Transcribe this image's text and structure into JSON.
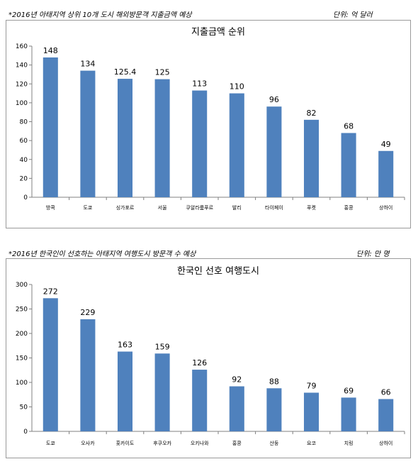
{
  "notes": [
    {
      "left": "*2016년 아태지역 상위 10개 도시 해외방문객 지출금액 예상",
      "right": "단위: 억 달러"
    },
    {
      "left": "*2016년 한국인이 선호하는 아태지역 여행도시 방문객 수 예상",
      "right": "단위: 만 명"
    }
  ],
  "chart_data": [
    {
      "type": "bar",
      "title": "지출금액 순위",
      "categories": [
        "방콕",
        "도쿄",
        "싱가포르",
        "서울",
        "쿠알라룸푸르",
        "발리",
        "타이페이",
        "푸켓",
        "홍콩",
        "상하이"
      ],
      "values": [
        148,
        134,
        125.4,
        125,
        113,
        110,
        96,
        82,
        68,
        49
      ],
      "value_labels": [
        "148",
        "134",
        "125.4",
        "125",
        "113",
        "110",
        "96",
        "82",
        "68",
        "49"
      ],
      "yticks": [
        "0",
        "20",
        "40",
        "60",
        "80",
        "100",
        "120",
        "140",
        "160"
      ],
      "ylim": [
        0,
        160
      ],
      "grid": false,
      "bar_color": "#4f81bd"
    },
    {
      "type": "bar",
      "title": "한국인 선호 여행도시",
      "categories": [
        "도쿄",
        "오사카",
        "홋카이도",
        "후쿠오카",
        "오키나와",
        "홍콩",
        "산둥",
        "요코",
        "치링",
        "상하이"
      ],
      "values": [
        272,
        229,
        163,
        159,
        126,
        92,
        88,
        79,
        69,
        66
      ],
      "value_labels": [
        "272",
        "229",
        "163",
        "159",
        "126",
        "92",
        "88",
        "79",
        "69",
        "66"
      ],
      "yticks": [
        "0",
        "50",
        "100",
        "150",
        "200",
        "250",
        "300"
      ],
      "ylim": [
        0,
        300
      ],
      "grid": false,
      "bar_color": "#4f81bd"
    }
  ]
}
